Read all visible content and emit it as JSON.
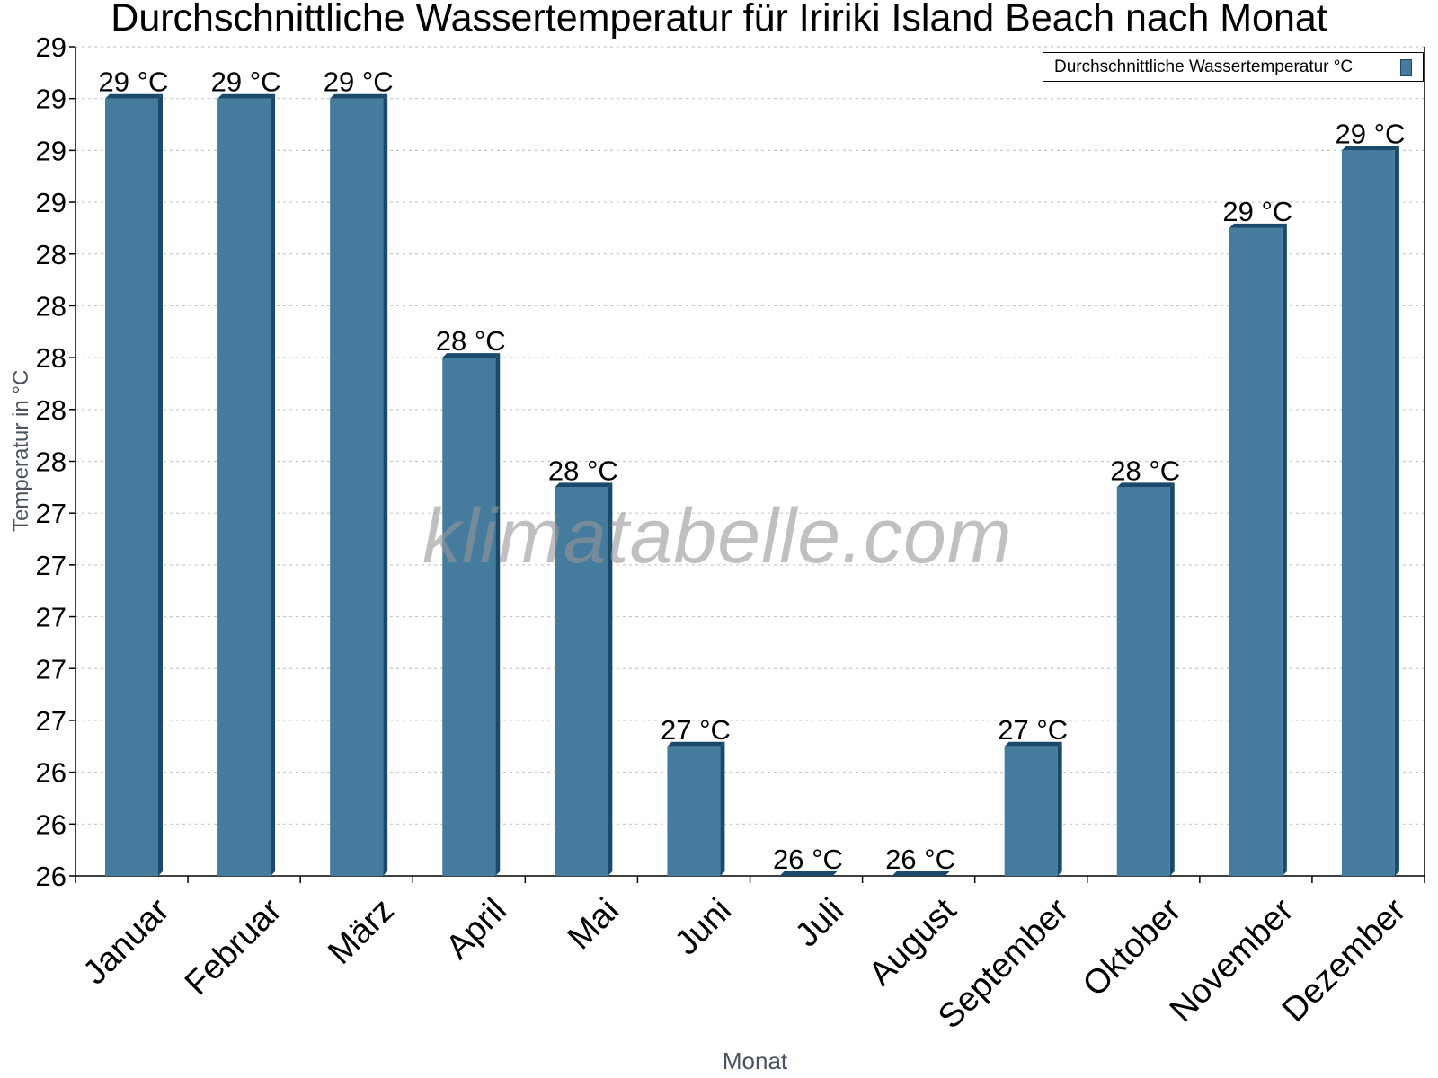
{
  "chart_data": {
    "type": "bar",
    "title": "Durchschnittliche Wassertemperatur für Iririki Island Beach nach Monat",
    "xlabel": "Monat",
    "ylabel": "Temperatur in °C",
    "categories": [
      "Januar",
      "Februar",
      "März",
      "April",
      "Mai",
      "Juni",
      "Juli",
      "August",
      "September",
      "Oktober",
      "November",
      "Dezember"
    ],
    "series": [
      {
        "name": "Durchschnittliche Wassertemperatur °C",
        "values": [
          29.0,
          29.0,
          29.0,
          28.0,
          27.5,
          26.5,
          26.0,
          26.0,
          26.5,
          27.5,
          28.5,
          28.8
        ],
        "data_labels": [
          "29 °C",
          "29 °C",
          "29 °C",
          "28 °C",
          "28 °C",
          "27 °C",
          "26 °C",
          "26 °C",
          "27 °C",
          "28 °C",
          "29 °C",
          "29 °C"
        ],
        "color": "#457b9d",
        "shade_color": "#1a4a6b"
      }
    ],
    "ylim": [
      26.0,
      29.2
    ],
    "yticks": [
      26.0,
      26.2,
      26.4,
      26.6,
      26.8,
      27.0,
      27.2,
      27.4,
      27.6,
      27.8,
      28.0,
      28.2,
      28.4,
      28.6,
      28.8,
      29.0,
      29.2
    ],
    "ytick_labels": [
      "26",
      "26",
      "26",
      "27",
      "27",
      "27",
      "27",
      "27",
      "28",
      "28",
      "28",
      "28",
      "28",
      "29",
      "29",
      "29",
      "29"
    ],
    "grid": true,
    "legend_position": "top-right",
    "watermark": "klimatabelle.com"
  },
  "legend": {
    "label": "Durchschnittliche Wassertemperatur °C"
  }
}
